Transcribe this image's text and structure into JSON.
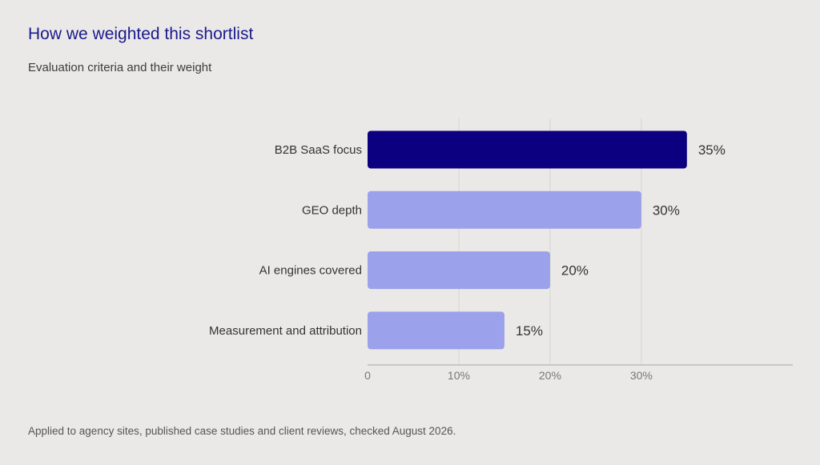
{
  "chart_data": {
    "type": "bar",
    "orientation": "horizontal",
    "title": "How we weighted this shortlist",
    "subtitle": "Evaluation criteria and their weight",
    "categories": [
      "B2B SaaS focus",
      "GEO depth",
      "AI engines covered",
      "Measurement and attribution"
    ],
    "values": [
      35,
      30,
      20,
      15
    ],
    "value_labels": [
      "35%",
      "30%",
      "20%",
      "15%"
    ],
    "xlim": [
      0,
      46.6
    ],
    "xticks": [
      0,
      10,
      20,
      30
    ],
    "xtick_labels": [
      "0",
      "10%",
      "20%",
      "30%"
    ],
    "grid": true,
    "colors": {
      "highlight": "#0d0080",
      "default": "#9ba1ea",
      "highlight_label": "#1a1a8c",
      "default_label": "#333333"
    }
  },
  "footnote": "Applied to agency sites, published case studies and client reviews, checked August 2026."
}
